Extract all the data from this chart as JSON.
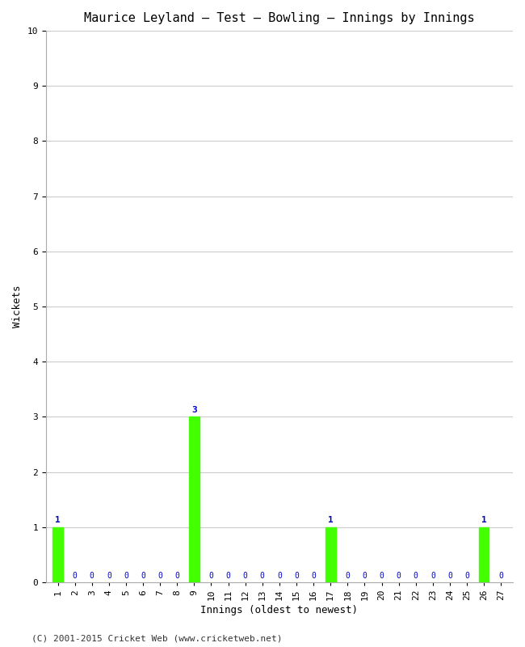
{
  "title": "Maurice Leyland – Test – Bowling – Innings by Innings",
  "xlabel": "Innings (oldest to newest)",
  "ylabel": "Wickets",
  "innings": [
    1,
    2,
    3,
    4,
    5,
    6,
    7,
    8,
    9,
    10,
    11,
    12,
    13,
    14,
    15,
    16,
    17,
    18,
    19,
    20,
    21,
    22,
    23,
    24,
    25,
    26,
    27
  ],
  "wickets": [
    1,
    0,
    0,
    0,
    0,
    0,
    0,
    0,
    3,
    0,
    0,
    0,
    0,
    0,
    0,
    0,
    1,
    0,
    0,
    0,
    0,
    0,
    0,
    0,
    0,
    1,
    0
  ],
  "bar_color_nonzero": "#44ff00",
  "bar_color_zero": "#0000cc",
  "ylim": [
    0,
    10
  ],
  "yticks": [
    0,
    1,
    2,
    3,
    4,
    5,
    6,
    7,
    8,
    9,
    10
  ],
  "background_color": "#ffffff",
  "plot_bg_color": "#ffffff",
  "grid_color": "#cccccc",
  "title_fontsize": 11,
  "axis_label_fontsize": 9,
  "tick_fontsize": 8,
  "annotation_fontsize": 8,
  "zero_label_fontsize": 7,
  "footer": "(C) 2001-2015 Cricket Web (www.cricketweb.net)",
  "footer_fontsize": 8
}
